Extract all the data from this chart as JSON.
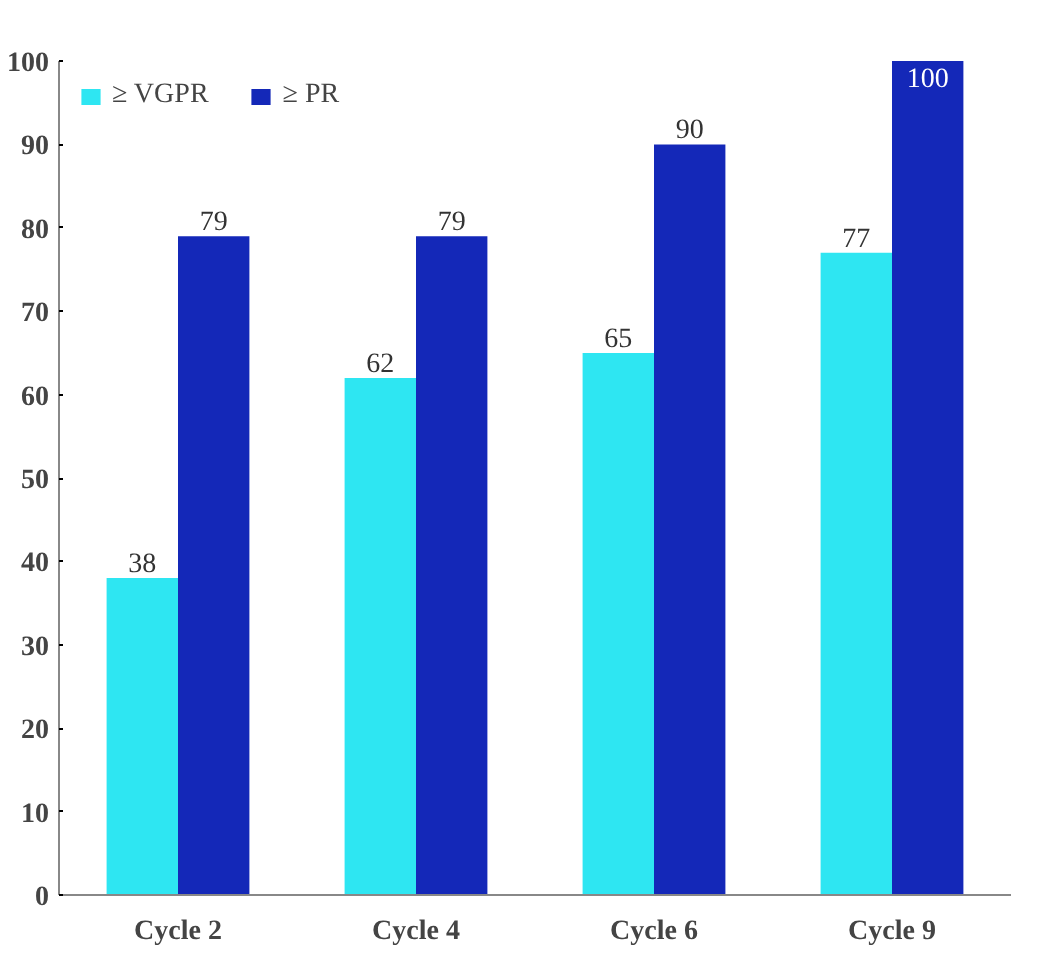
{
  "chart_data": {
    "type": "bar",
    "categories": [
      "Cycle 2",
      "Cycle 4",
      "Cycle 6",
      "Cycle 9"
    ],
    "series": [
      {
        "name": "≥ VGPR",
        "color": "#2ee6f2",
        "values": [
          38,
          62,
          65,
          77
        ]
      },
      {
        "name": "≥ PR",
        "color": "#1428b8",
        "values": [
          79,
          79,
          90,
          100
        ]
      }
    ],
    "ylim": [
      0,
      100
    ],
    "yticks": [
      0,
      10,
      20,
      30,
      40,
      50,
      60,
      70,
      80,
      90,
      100
    ],
    "grid": false,
    "legend": "top",
    "data_labels": true
  }
}
